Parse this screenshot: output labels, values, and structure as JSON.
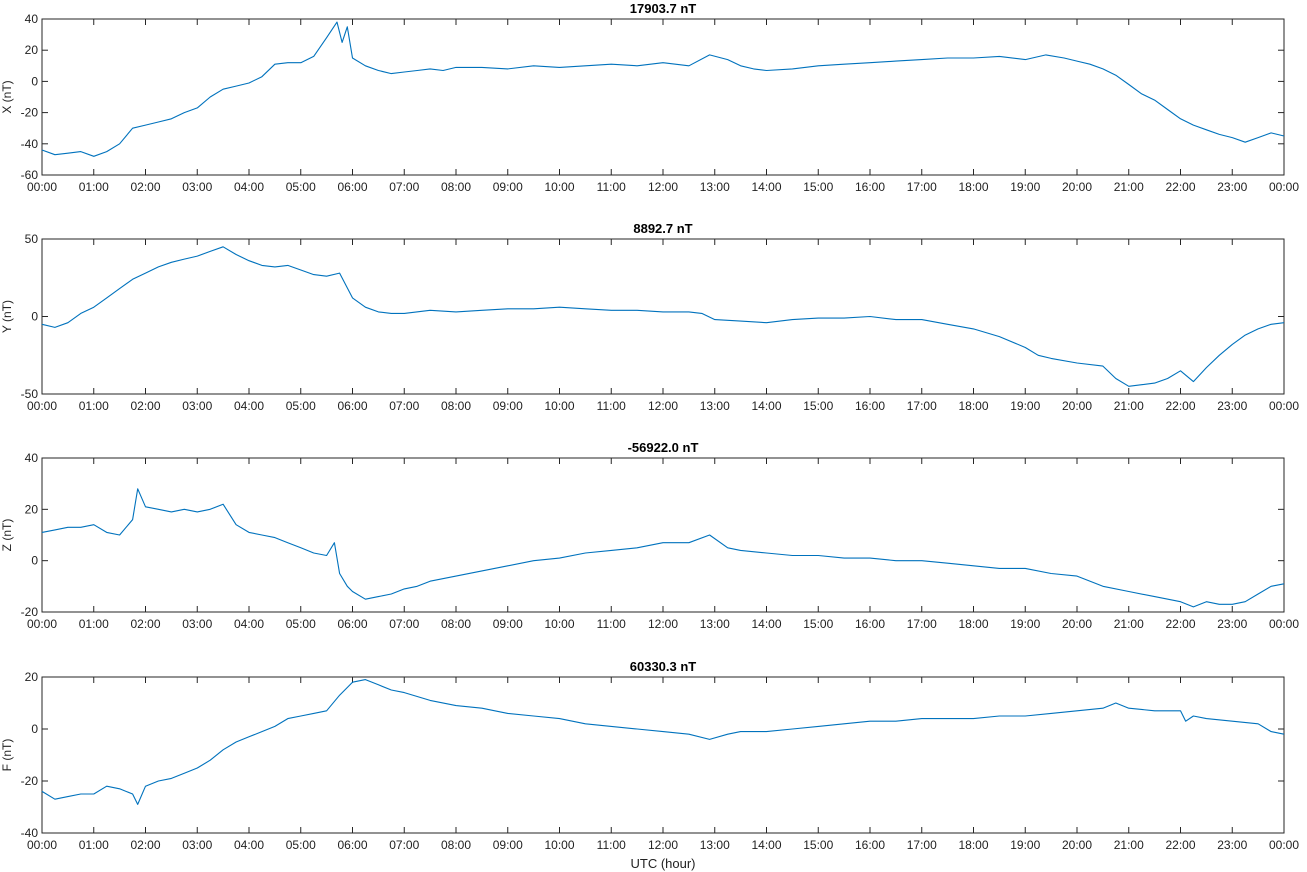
{
  "chart_data": [
    {
      "type": "line",
      "title": "17903.7 nT",
      "ylabel": "X (nT)",
      "xlabel": "",
      "ylim": [
        -60,
        40
      ],
      "yticks": [
        -60,
        -40,
        -20,
        0,
        20,
        40
      ],
      "xlim": [
        0,
        24
      ],
      "xticklabels": [
        "00:00",
        "01:00",
        "02:00",
        "03:00",
        "04:00",
        "05:00",
        "06:00",
        "07:00",
        "08:00",
        "09:00",
        "10:00",
        "11:00",
        "12:00",
        "13:00",
        "14:00",
        "15:00",
        "16:00",
        "17:00",
        "18:00",
        "19:00",
        "20:00",
        "21:00",
        "22:00",
        "23:00",
        "00:00"
      ],
      "series": [
        {
          "color": "#0072BD",
          "x": [
            0,
            0.25,
            0.5,
            0.75,
            1,
            1.25,
            1.5,
            1.75,
            2,
            2.25,
            2.5,
            2.75,
            3,
            3.25,
            3.5,
            3.75,
            4,
            4.25,
            4.5,
            4.75,
            5,
            5.25,
            5.5,
            5.7,
            5.8,
            5.9,
            6,
            6.25,
            6.5,
            6.75,
            7,
            7.25,
            7.5,
            7.75,
            8,
            8.5,
            9,
            9.5,
            10,
            10.5,
            11,
            11.5,
            12,
            12.5,
            12.9,
            13.25,
            13.5,
            13.75,
            14,
            14.5,
            15,
            15.5,
            16,
            16.5,
            17,
            17.5,
            18,
            18.5,
            19,
            19.4,
            19.75,
            20,
            20.25,
            20.5,
            20.75,
            21,
            21.25,
            21.5,
            21.75,
            22,
            22.25,
            22.5,
            22.75,
            23,
            23.25,
            23.5,
            23.75,
            24
          ],
          "values": [
            -44,
            -47,
            -46,
            -45,
            -48,
            -45,
            -40,
            -30,
            -28,
            -26,
            -24,
            -20,
            -17,
            -10,
            -5,
            -3,
            -1,
            3,
            11,
            12,
            12,
            16,
            28,
            38,
            25,
            35,
            15,
            10,
            7,
            5,
            6,
            7,
            8,
            7,
            9,
            9,
            8,
            10,
            9,
            10,
            11,
            10,
            12,
            10,
            17,
            14,
            10,
            8,
            7,
            8,
            10,
            11,
            12,
            13,
            14,
            15,
            15,
            16,
            14,
            17,
            15,
            13,
            11,
            8,
            4,
            -2,
            -8,
            -12,
            -18,
            -24,
            -28,
            -31,
            -34,
            -36,
            -39,
            -36,
            -33,
            -35
          ]
        }
      ]
    },
    {
      "type": "line",
      "title": "8892.7 nT",
      "ylabel": "Y (nT)",
      "xlabel": "",
      "ylim": [
        -50,
        50
      ],
      "yticks": [
        -50,
        0,
        50
      ],
      "xlim": [
        0,
        24
      ],
      "xticklabels": [
        "00:00",
        "01:00",
        "02:00",
        "03:00",
        "04:00",
        "05:00",
        "06:00",
        "07:00",
        "08:00",
        "09:00",
        "10:00",
        "11:00",
        "12:00",
        "13:00",
        "14:00",
        "15:00",
        "16:00",
        "17:00",
        "18:00",
        "19:00",
        "20:00",
        "21:00",
        "22:00",
        "23:00",
        "00:00"
      ],
      "series": [
        {
          "color": "#0072BD",
          "x": [
            0,
            0.25,
            0.5,
            0.75,
            1,
            1.25,
            1.5,
            1.75,
            2,
            2.25,
            2.5,
            2.75,
            3,
            3.25,
            3.5,
            3.75,
            4,
            4.25,
            4.5,
            4.75,
            5,
            5.25,
            5.5,
            5.75,
            6,
            6.25,
            6.5,
            6.75,
            7,
            7.5,
            8,
            8.5,
            9,
            9.5,
            10,
            10.5,
            11,
            11.5,
            12,
            12.5,
            12.75,
            13,
            13.5,
            14,
            14.5,
            15,
            15.5,
            16,
            16.5,
            17,
            17.5,
            18,
            18.5,
            19,
            19.25,
            19.5,
            20,
            20.5,
            20.75,
            21,
            21.25,
            21.5,
            21.75,
            22,
            22.25,
            22.5,
            22.75,
            23,
            23.25,
            23.5,
            23.75,
            24
          ],
          "values": [
            -5,
            -7,
            -4,
            2,
            6,
            12,
            18,
            24,
            28,
            32,
            35,
            37,
            39,
            42,
            45,
            40,
            36,
            33,
            32,
            33,
            30,
            27,
            26,
            28,
            12,
            6,
            3,
            2,
            2,
            4,
            3,
            4,
            5,
            5,
            6,
            5,
            4,
            4,
            3,
            3,
            2,
            -2,
            -3,
            -4,
            -2,
            -1,
            -1,
            0,
            -2,
            -2,
            -5,
            -8,
            -13,
            -20,
            -25,
            -27,
            -30,
            -32,
            -40,
            -45,
            -44,
            -43,
            -40,
            -35,
            -42,
            -33,
            -25,
            -18,
            -12,
            -8,
            -5,
            -4
          ]
        }
      ]
    },
    {
      "type": "line",
      "title": "-56922.0 nT",
      "ylabel": "Z (nT)",
      "xlabel": "",
      "ylim": [
        -20,
        40
      ],
      "yticks": [
        -20,
        0,
        20,
        40
      ],
      "xlim": [
        0,
        24
      ],
      "xticklabels": [
        "00:00",
        "01:00",
        "02:00",
        "03:00",
        "04:00",
        "05:00",
        "06:00",
        "07:00",
        "08:00",
        "09:00",
        "10:00",
        "11:00",
        "12:00",
        "13:00",
        "14:00",
        "15:00",
        "16:00",
        "17:00",
        "18:00",
        "19:00",
        "20:00",
        "21:00",
        "22:00",
        "23:00",
        "00:00"
      ],
      "series": [
        {
          "color": "#0072BD",
          "x": [
            0,
            0.25,
            0.5,
            0.75,
            1,
            1.25,
            1.5,
            1.75,
            1.85,
            2,
            2.25,
            2.5,
            2.75,
            3,
            3.25,
            3.5,
            3.75,
            4,
            4.25,
            4.5,
            4.75,
            5,
            5.25,
            5.5,
            5.65,
            5.75,
            5.9,
            6,
            6.25,
            6.5,
            6.75,
            7,
            7.25,
            7.5,
            8,
            8.5,
            9,
            9.5,
            10,
            10.5,
            11,
            11.5,
            12,
            12.5,
            12.9,
            13.25,
            13.5,
            14,
            14.5,
            15,
            15.5,
            16,
            16.5,
            17,
            17.5,
            18,
            18.5,
            19,
            19.5,
            20,
            20.5,
            21,
            21.5,
            22,
            22.25,
            22.5,
            22.75,
            23,
            23.25,
            23.5,
            23.75,
            24
          ],
          "values": [
            11,
            12,
            13,
            13,
            14,
            11,
            10,
            16,
            28,
            21,
            20,
            19,
            20,
            19,
            20,
            22,
            14,
            11,
            10,
            9,
            7,
            5,
            3,
            2,
            7,
            -5,
            -10,
            -12,
            -15,
            -14,
            -13,
            -11,
            -10,
            -8,
            -6,
            -4,
            -2,
            0,
            1,
            3,
            4,
            5,
            7,
            7,
            10,
            5,
            4,
            3,
            2,
            2,
            1,
            1,
            0,
            0,
            -1,
            -2,
            -3,
            -3,
            -5,
            -6,
            -10,
            -12,
            -14,
            -16,
            -18,
            -16,
            -17,
            -17,
            -16,
            -13,
            -10,
            -9
          ]
        }
      ]
    },
    {
      "type": "line",
      "title": "60330.3 nT",
      "ylabel": "F (nT)",
      "xlabel": "UTC (hour)",
      "ylim": [
        -40,
        20
      ],
      "yticks": [
        -40,
        -20,
        0,
        20
      ],
      "xlim": [
        0,
        24
      ],
      "xticklabels": [
        "00:00",
        "01:00",
        "02:00",
        "03:00",
        "04:00",
        "05:00",
        "06:00",
        "07:00",
        "08:00",
        "09:00",
        "10:00",
        "11:00",
        "12:00",
        "13:00",
        "14:00",
        "15:00",
        "16:00",
        "17:00",
        "18:00",
        "19:00",
        "20:00",
        "21:00",
        "22:00",
        "23:00",
        "00:00"
      ],
      "series": [
        {
          "color": "#0072BD",
          "x": [
            0,
            0.25,
            0.5,
            0.75,
            1,
            1.25,
            1.5,
            1.75,
            1.85,
            2,
            2.25,
            2.5,
            2.75,
            3,
            3.25,
            3.5,
            3.75,
            4,
            4.25,
            4.5,
            4.75,
            5,
            5.25,
            5.5,
            5.75,
            6,
            6.25,
            6.5,
            6.75,
            7,
            7.5,
            8,
            8.5,
            9,
            9.5,
            10,
            10.5,
            11,
            11.5,
            12,
            12.5,
            12.9,
            13.25,
            13.5,
            14,
            14.5,
            15,
            15.5,
            16,
            16.5,
            17,
            17.5,
            18,
            18.5,
            19,
            19.5,
            20,
            20.5,
            20.75,
            21,
            21.5,
            22,
            22.1,
            22.25,
            22.5,
            23,
            23.5,
            23.75,
            24
          ],
          "values": [
            -24,
            -27,
            -26,
            -25,
            -25,
            -22,
            -23,
            -25,
            -29,
            -22,
            -20,
            -19,
            -17,
            -15,
            -12,
            -8,
            -5,
            -3,
            -1,
            1,
            4,
            5,
            6,
            7,
            13,
            18,
            19,
            17,
            15,
            14,
            11,
            9,
            8,
            6,
            5,
            4,
            2,
            1,
            0,
            -1,
            -2,
            -4,
            -2,
            -1,
            -1,
            0,
            1,
            2,
            3,
            3,
            4,
            4,
            4,
            5,
            5,
            6,
            7,
            8,
            10,
            8,
            7,
            7,
            3,
            5,
            4,
            3,
            2,
            -1,
            -2
          ]
        }
      ]
    }
  ]
}
